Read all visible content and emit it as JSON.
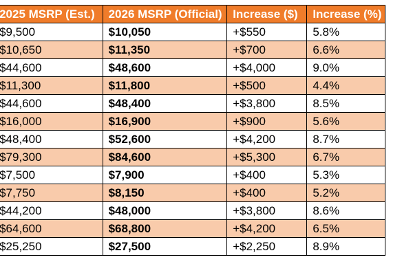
{
  "table": {
    "headers": [
      "",
      "2025 MSRP (Est.)",
      "2026 MSRP (Official)",
      "Increase ($)",
      "Increase (%)"
    ],
    "rows": [
      {
        "msrp_2025": "$9,500",
        "msrp_2026": "$10,050",
        "increase_usd": "+$550",
        "increase_pct": "5.8%"
      },
      {
        "msrp_2025": "$10,650",
        "msrp_2026": "$11,350",
        "increase_usd": "+$700",
        "increase_pct": "6.6%"
      },
      {
        "msrp_2025": "$44,600",
        "msrp_2026": "$48,600",
        "increase_usd": "+$4,000",
        "increase_pct": "9.0%"
      },
      {
        "msrp_2025": "$11,300",
        "msrp_2026": "$11,800",
        "increase_usd": "+$500",
        "increase_pct": "4.4%"
      },
      {
        "msrp_2025": "$44,600",
        "msrp_2026": "$48,400",
        "increase_usd": "+$3,800",
        "increase_pct": "8.5%"
      },
      {
        "msrp_2025": "$16,000",
        "msrp_2026": "$16,900",
        "increase_usd": "+$900",
        "increase_pct": "5.6%"
      },
      {
        "msrp_2025": "$48,400",
        "msrp_2026": "$52,600",
        "increase_usd": "+$4,200",
        "increase_pct": "8.7%"
      },
      {
        "msrp_2025": "$79,300",
        "msrp_2026": "$84,600",
        "increase_usd": "+$5,300",
        "increase_pct": "6.7%"
      },
      {
        "msrp_2025": "$7,500",
        "msrp_2026": "$7,900",
        "increase_usd": "+$400",
        "increase_pct": "5.3%"
      },
      {
        "msrp_2025": "$7,750",
        "msrp_2026": "$8,150",
        "increase_usd": "+$400",
        "increase_pct": "5.2%"
      },
      {
        "msrp_2025": "$44,200",
        "msrp_2026": "$48,000",
        "increase_usd": "+$3,800",
        "increase_pct": "8.6%"
      },
      {
        "msrp_2025": "$64,600",
        "msrp_2026": "$68,800",
        "increase_usd": "+$4,200",
        "increase_pct": "6.5%"
      },
      {
        "msrp_2025": "$25,250",
        "msrp_2026": "$27,500",
        "increase_usd": "+$2,250",
        "increase_pct": "8.9%"
      }
    ]
  },
  "colors": {
    "header_bg": "#f07c2a",
    "header_text": "#ffffff",
    "band_row_bg": "#f9cbab",
    "plain_row_bg": "#ffffff",
    "grid_line": "#000000"
  }
}
